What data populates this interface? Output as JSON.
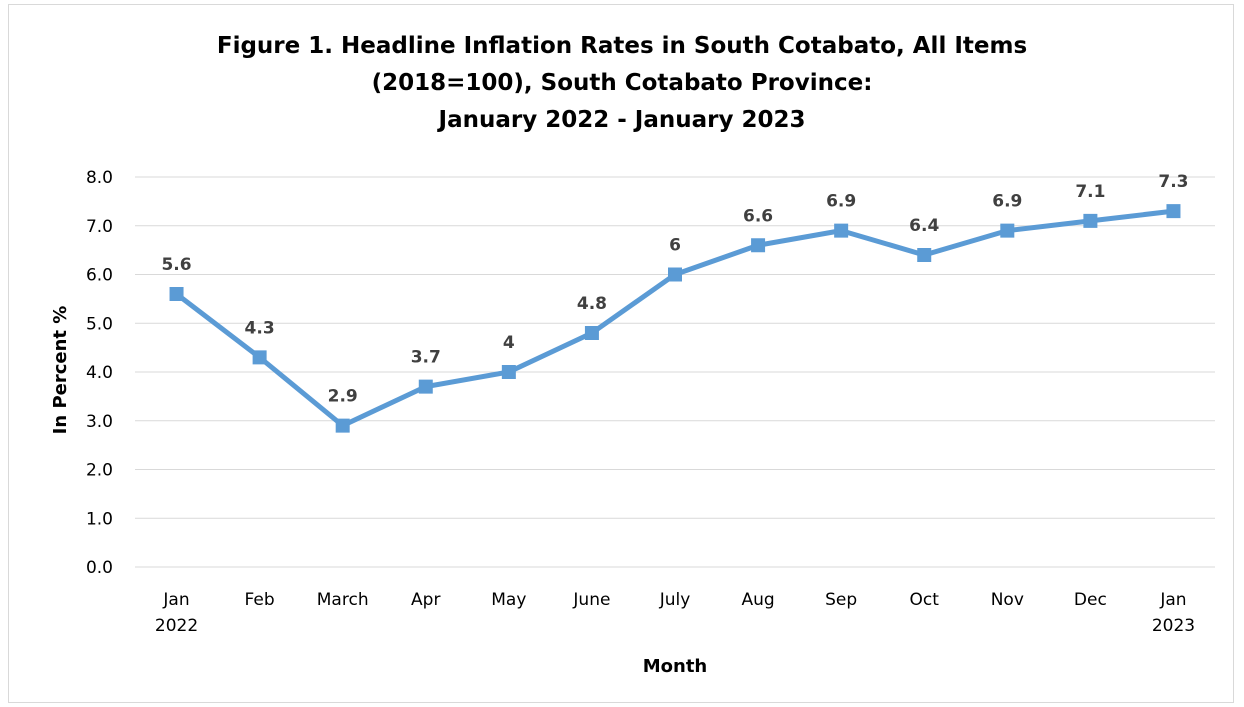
{
  "chart_data": {
    "type": "line",
    "title_lines": [
      "Figure 1. Headline Inflation Rates in South Cotabato, All Items",
      "(2018=100), South Cotabato Province:",
      "January 2022 - January 2023"
    ],
    "xlabel": "Month",
    "ylabel": "In Percent %",
    "ylim": [
      0,
      8
    ],
    "y_ticks": [
      "0.0",
      "1.0",
      "2.0",
      "3.0",
      "4.0",
      "5.0",
      "6.0",
      "7.0",
      "8.0"
    ],
    "categories": [
      [
        "Jan",
        "2022"
      ],
      [
        "Feb"
      ],
      [
        "March"
      ],
      [
        "Apr"
      ],
      [
        "May"
      ],
      [
        "June"
      ],
      [
        "July"
      ],
      [
        "Aug"
      ],
      [
        "Sep"
      ],
      [
        "Oct"
      ],
      [
        "Nov"
      ],
      [
        "Dec"
      ],
      [
        "Jan",
        "2023"
      ]
    ],
    "values": [
      5.6,
      4.3,
      2.9,
      3.7,
      4,
      4.8,
      6,
      6.6,
      6.9,
      6.4,
      6.9,
      7.1,
      7.3
    ],
    "data_labels": [
      "5.6",
      "4.3",
      "2.9",
      "3.7",
      "4",
      "4.8",
      "6",
      "6.6",
      "6.9",
      "6.4",
      "6.9",
      "7.1",
      "7.3"
    ],
    "grid": true,
    "legend": "none",
    "series_color": "#5b9bd5",
    "grid_color": "#d9d9d9"
  }
}
